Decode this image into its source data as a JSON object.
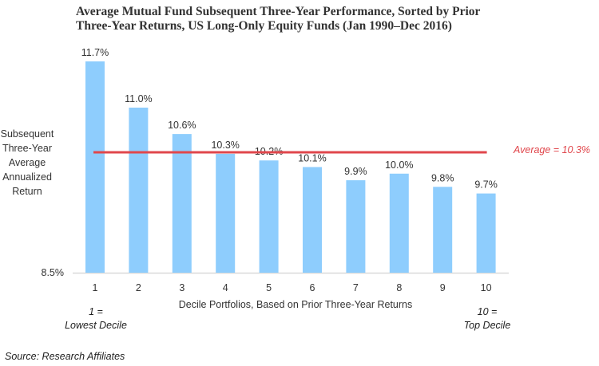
{
  "chart_data": {
    "type": "bar",
    "title": "Average Mutual Fund Subsequent Three-Year Performance, Sorted by Prior Three-Year Returns, US Long-Only Equity Funds (Jan 1990–Dec 2016)",
    "title_lines": [
      "Average Mutual Fund Subsequent Three-Year Performance, Sorted by Prior",
      "Three-Year Returns, US Long-Only Equity Funds (Jan 1990–Dec 2016)"
    ],
    "xlabel": "Decile Portfolios, Based on Prior Three-Year Returns",
    "ylabel_lines": [
      "Subsequent",
      "Three-Year",
      "Average",
      "Annualized",
      "Return"
    ],
    "ylabel": "Subsequent Three-Year Average Annualized Return",
    "categories": [
      "1",
      "2",
      "3",
      "4",
      "5",
      "6",
      "7",
      "8",
      "9",
      "10"
    ],
    "values": [
      11.7,
      11.0,
      10.6,
      10.3,
      10.2,
      10.1,
      9.9,
      10.0,
      9.8,
      9.7
    ],
    "data_labels": [
      "11.7%",
      "11.0%",
      "10.6%",
      "10.3%",
      "10.2%",
      "10.1%",
      "9.9%",
      "10.0%",
      "9.8%",
      "9.7%"
    ],
    "ylim": [
      8.5,
      11.7
    ],
    "yticks": [
      "8.5%"
    ],
    "grid": false,
    "legend": "none",
    "reference_line": {
      "value": 10.3,
      "label": "Average = 10.3%",
      "color": "#e0474c"
    },
    "bar_color": "#8ecdfd",
    "annotations": {
      "left": [
        "1 =",
        "Lowest Decile"
      ],
      "right": [
        "10 =",
        "Top Decile"
      ]
    }
  },
  "source": "Source: Research Affiliates"
}
